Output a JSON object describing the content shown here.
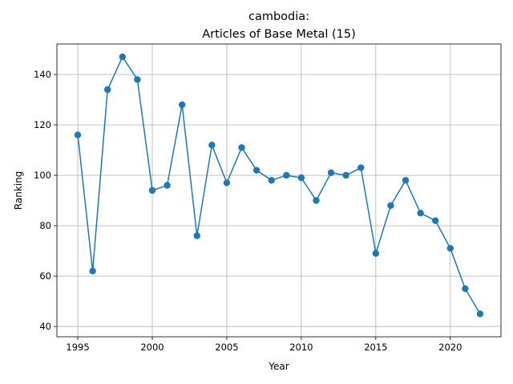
{
  "chart_data": {
    "type": "line",
    "title": "cambodia:",
    "subtitle": "Articles of Base Metal (15)",
    "xlabel": "Year",
    "ylabel": "Ranking",
    "xlim": [
      1993.6,
      2023.4
    ],
    "ylim": [
      35.9,
      152.1
    ],
    "xticks": [
      1995,
      2000,
      2005,
      2010,
      2015,
      2020
    ],
    "yticks": [
      40,
      60,
      80,
      100,
      120,
      140
    ],
    "grid": true,
    "color": "#1f77b4",
    "marker": "circle",
    "series": [
      {
        "x": [
          1995,
          1996,
          1997,
          1998,
          1999,
          2000,
          2001,
          2002,
          2003,
          2004,
          2005,
          2006,
          2007,
          2008,
          2009,
          2010,
          2011,
          2012,
          2013,
          2014,
          2015,
          2016,
          2017,
          2018,
          2019,
          2020,
          2021,
          2022
        ],
        "y": [
          116,
          62,
          134,
          147,
          138,
          94,
          96,
          128,
          76,
          112,
          97,
          111,
          102,
          98,
          100,
          99,
          90,
          101,
          100,
          103,
          69,
          88,
          98,
          85,
          82,
          71,
          55,
          45
        ]
      }
    ]
  }
}
